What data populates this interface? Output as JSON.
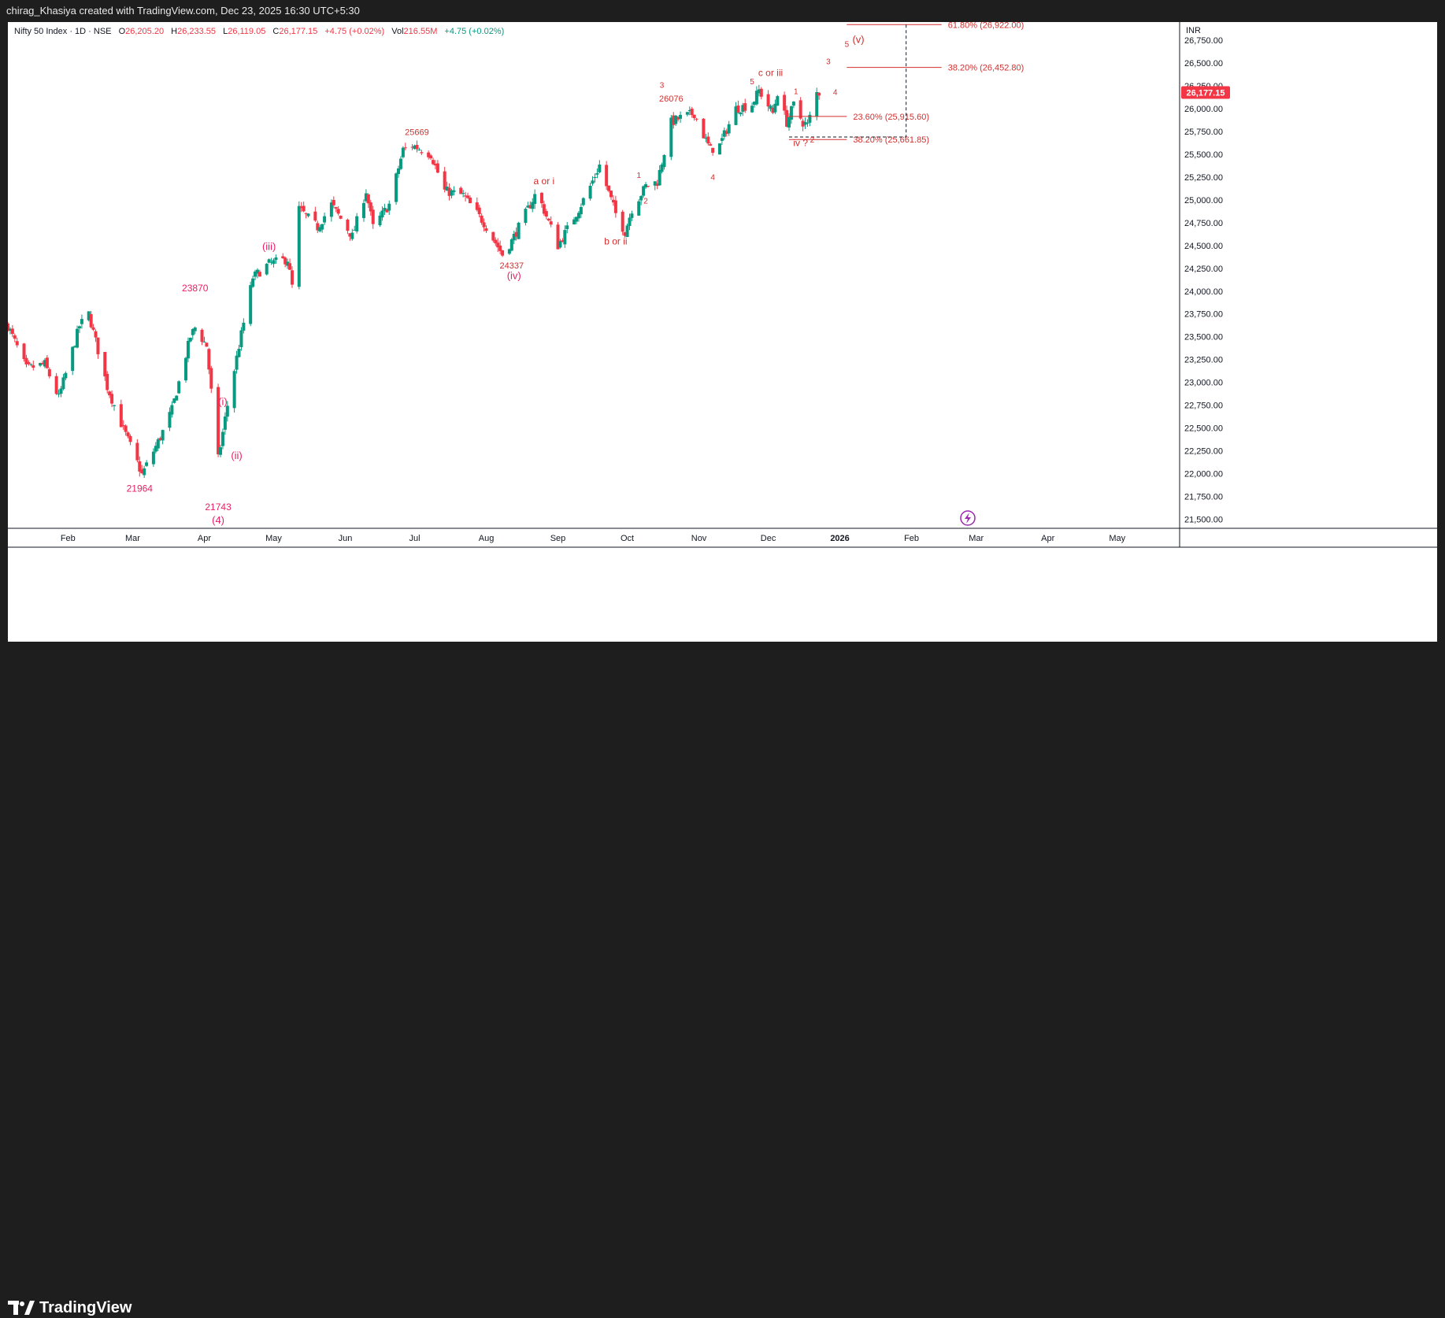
{
  "header": {
    "attribution": "chirag_Khasiya created with TradingView.com, Dec 23, 2025 16:30 UTC+5:30"
  },
  "legend": {
    "symbol": "Nifty 50 Index · 1D · NSE",
    "open_label": "O",
    "open": "26,205.20",
    "high_label": "H",
    "high": "26,233.55",
    "low_label": "L",
    "low": "26,119.05",
    "close_label": "C",
    "close": "26,177.15",
    "change": "+4.75 (+0.02%)",
    "vol_label": "Vol",
    "vol": "216.55M",
    "vol_change": "+4.75 (+0.02%)"
  },
  "branding": {
    "logo_text": "TradingView"
  },
  "colors": {
    "up": "#089981",
    "down": "#f23645",
    "wave_pink": "#e91e63",
    "fib": "#d32f2f",
    "axis_text": "#131722",
    "price_tag_bg": "#f23645"
  },
  "chart_data": {
    "type": "candlestick",
    "currency_label": "INR",
    "last_price_label": "26,177.15",
    "last_price": 26177.15,
    "ylim": [
      21400,
      26950
    ],
    "y_ticks": [
      {
        "v": 26750,
        "l": "26,750.00"
      },
      {
        "v": 26500,
        "l": "26,500.00"
      },
      {
        "v": 26250,
        "l": "26,250.00"
      },
      {
        "v": 26000,
        "l": "26,000.00"
      },
      {
        "v": 25750,
        "l": "25,750.00"
      },
      {
        "v": 25500,
        "l": "25,500.00"
      },
      {
        "v": 25250,
        "l": "25,250.00"
      },
      {
        "v": 25000,
        "l": "25,000.00"
      },
      {
        "v": 24750,
        "l": "24,750.00"
      },
      {
        "v": 24500,
        "l": "24,500.00"
      },
      {
        "v": 24250,
        "l": "24,250.00"
      },
      {
        "v": 24000,
        "l": "24,000.00"
      },
      {
        "v": 23750,
        "l": "23,750.00"
      },
      {
        "v": 23500,
        "l": "23,500.00"
      },
      {
        "v": 23250,
        "l": "23,250.00"
      },
      {
        "v": 23000,
        "l": "23,000.00"
      },
      {
        "v": 22750,
        "l": "22,750.00"
      },
      {
        "v": 22500,
        "l": "22,500.00"
      },
      {
        "v": 22250,
        "l": "22,250.00"
      },
      {
        "v": 22000,
        "l": "22,000.00"
      },
      {
        "v": 21750,
        "l": "21,750.00"
      },
      {
        "v": 21500,
        "l": "21,500.00"
      }
    ],
    "x_ticks": [
      {
        "d": "2025-02-01",
        "l": "Feb",
        "bold": false
      },
      {
        "d": "2025-03-01",
        "l": "Mar",
        "bold": false
      },
      {
        "d": "2025-04-01",
        "l": "Apr",
        "bold": false
      },
      {
        "d": "2025-05-01",
        "l": "May",
        "bold": false
      },
      {
        "d": "2025-06-01",
        "l": "Jun",
        "bold": false
      },
      {
        "d": "2025-07-01",
        "l": "Jul",
        "bold": false
      },
      {
        "d": "2025-08-01",
        "l": "Aug",
        "bold": false
      },
      {
        "d": "2025-09-01",
        "l": "Sep",
        "bold": false
      },
      {
        "d": "2025-10-01",
        "l": "Oct",
        "bold": false
      },
      {
        "d": "2025-11-01",
        "l": "Nov",
        "bold": false
      },
      {
        "d": "2025-12-01",
        "l": "Dec",
        "bold": false
      },
      {
        "d": "2026-01-01",
        "l": "2026",
        "bold": true
      },
      {
        "d": "2026-02-01",
        "l": "Feb",
        "bold": false
      },
      {
        "d": "2026-03-01",
        "l": "Mar",
        "bold": false
      },
      {
        "d": "2026-04-01",
        "l": "Apr",
        "bold": false
      },
      {
        "d": "2026-05-01",
        "l": "May",
        "bold": false
      }
    ],
    "xlim": [
      "2025-01-06",
      "2026-05-28"
    ],
    "anchors": [
      {
        "d": "2025-01-06",
        "c": 23620
      },
      {
        "d": "2025-01-14",
        "c": 23150
      },
      {
        "d": "2025-01-22",
        "c": 23200
      },
      {
        "d": "2025-01-28",
        "c": 22830
      },
      {
        "d": "2025-02-06",
        "c": 23620
      },
      {
        "d": "2025-02-10",
        "c": 23750
      },
      {
        "d": "2025-02-18",
        "c": 22950
      },
      {
        "d": "2025-02-24",
        "c": 22550
      },
      {
        "d": "2025-03-03",
        "c": 22120
      },
      {
        "d": "2025-03-05",
        "c": 21990
      },
      {
        "d": "2025-03-13",
        "c": 22400
      },
      {
        "d": "2025-03-18",
        "c": 22700
      },
      {
        "d": "2025-03-26",
        "c": 23500
      },
      {
        "d": "2025-03-28",
        "c": 23600
      },
      {
        "d": "2025-04-02",
        "c": 23400
      },
      {
        "d": "2025-04-04",
        "c": 22900
      },
      {
        "d": "2025-04-07",
        "c": 22160
      },
      {
        "d": "2025-04-09",
        "c": 22450
      },
      {
        "d": "2025-04-11",
        "c": 22750
      },
      {
        "d": "2025-04-16",
        "c": 23400
      },
      {
        "d": "2025-04-22",
        "c": 24150
      },
      {
        "d": "2025-04-29",
        "c": 24300
      },
      {
        "d": "2025-05-07",
        "c": 24350
      },
      {
        "d": "2025-05-09",
        "c": 24050
      },
      {
        "d": "2025-05-12",
        "c": 24900
      },
      {
        "d": "2025-05-20",
        "c": 24700
      },
      {
        "d": "2025-05-26",
        "c": 24950
      },
      {
        "d": "2025-06-04",
        "c": 24600
      },
      {
        "d": "2025-06-10",
        "c": 25100
      },
      {
        "d": "2025-06-13",
        "c": 24700
      },
      {
        "d": "2025-06-20",
        "c": 24950
      },
      {
        "d": "2025-06-26",
        "c": 25550
      },
      {
        "d": "2025-06-30",
        "c": 25600
      },
      {
        "d": "2025-07-08",
        "c": 25500
      },
      {
        "d": "2025-07-14",
        "c": 25100
      },
      {
        "d": "2025-07-22",
        "c": 25050
      },
      {
        "d": "2025-07-31",
        "c": 24750
      },
      {
        "d": "2025-08-08",
        "c": 24400
      },
      {
        "d": "2025-08-12",
        "c": 24550
      },
      {
        "d": "2025-08-18",
        "c": 24850
      },
      {
        "d": "2025-08-22",
        "c": 25050
      },
      {
        "d": "2025-08-25",
        "c": 24950
      },
      {
        "d": "2025-09-01",
        "c": 24500
      },
      {
        "d": "2025-09-10",
        "c": 24900
      },
      {
        "d": "2025-09-15",
        "c": 25150
      },
      {
        "d": "2025-09-19",
        "c": 25380
      },
      {
        "d": "2025-09-26",
        "c": 24850
      },
      {
        "d": "2025-09-30",
        "c": 24650
      },
      {
        "d": "2025-10-03",
        "c": 24900
      },
      {
        "d": "2025-10-09",
        "c": 25150
      },
      {
        "d": "2025-10-14",
        "c": 25200
      },
      {
        "d": "2025-10-20",
        "c": 25850
      },
      {
        "d": "2025-10-24",
        "c": 25900
      },
      {
        "d": "2025-10-30",
        "c": 25950
      },
      {
        "d": "2025-11-04",
        "c": 25650
      },
      {
        "d": "2025-11-06",
        "c": 25550
      },
      {
        "d": "2025-11-10",
        "c": 25600
      },
      {
        "d": "2025-11-17",
        "c": 26000
      },
      {
        "d": "2025-11-24",
        "c": 26050
      },
      {
        "d": "2025-11-27",
        "c": 26200
      },
      {
        "d": "2025-12-03",
        "c": 25950
      },
      {
        "d": "2025-12-05",
        "c": 26180
      },
      {
        "d": "2025-12-09",
        "c": 25850
      },
      {
        "d": "2025-12-12",
        "c": 26040
      },
      {
        "d": "2025-12-16",
        "c": 25850
      },
      {
        "d": "2025-12-18",
        "c": 25820
      },
      {
        "d": "2025-12-22",
        "c": 26172
      },
      {
        "d": "2025-12-23",
        "c": 26177
      }
    ],
    "wave_labels": [
      {
        "text": "23870",
        "d": "2025-03-28",
        "v": 24000,
        "color": "pink",
        "size": 12
      },
      {
        "text": "21964",
        "d": "2025-03-04",
        "v": 21800,
        "color": "pink",
        "size": 12
      },
      {
        "text": "21743",
        "d": "2025-04-07",
        "v": 21600,
        "color": "pink",
        "size": 12
      },
      {
        "text": "(4)",
        "d": "2025-04-07",
        "v": 21450,
        "color": "pink",
        "size": 13
      },
      {
        "text": "(i)",
        "d": "2025-04-09",
        "v": 22750,
        "color": "pink",
        "size": 13
      },
      {
        "text": "(ii)",
        "d": "2025-04-15",
        "v": 22160,
        "color": "pink",
        "size": 13
      },
      {
        "text": "(iii)",
        "d": "2025-04-29",
        "v": 24450,
        "color": "pink",
        "size": 13
      },
      {
        "text": "25669",
        "d": "2025-07-02",
        "v": 25710,
        "color": "red",
        "size": 11
      },
      {
        "text": "24337",
        "d": "2025-08-12",
        "v": 24250,
        "color": "red",
        "size": 11
      },
      {
        "text": "(iv)",
        "d": "2025-08-13",
        "v": 24130,
        "color": "pink",
        "size": 13
      },
      {
        "text": "a or i",
        "d": "2025-08-26",
        "v": 25170,
        "color": "red",
        "size": 12
      },
      {
        "text": "b or ii",
        "d": "2025-09-26",
        "v": 24510,
        "color": "red",
        "size": 12
      },
      {
        "text": "1",
        "d": "2025-10-06",
        "v": 25240,
        "color": "red",
        "size": 10
      },
      {
        "text": "2",
        "d": "2025-10-09",
        "v": 24960,
        "color": "red",
        "size": 10
      },
      {
        "text": "3",
        "d": "2025-10-16",
        "v": 26230,
        "color": "red",
        "size": 10
      },
      {
        "text": "26076",
        "d": "2025-10-20",
        "v": 26080,
        "color": "red",
        "size": 11
      },
      {
        "text": "4",
        "d": "2025-11-07",
        "v": 25220,
        "color": "red",
        "size": 10
      },
      {
        "text": "5",
        "d": "2025-11-24",
        "v": 26270,
        "color": "red",
        "size": 10
      },
      {
        "text": "c or iii",
        "d": "2025-12-02",
        "v": 26360,
        "color": "red",
        "size": 12
      },
      {
        "text": "1",
        "d": "2025-12-13",
        "v": 26160,
        "color": "red",
        "size": 10
      },
      {
        "text": "iv ?",
        "d": "2025-12-15",
        "v": 25590,
        "color": "red",
        "size": 12
      },
      {
        "text": "2",
        "d": "2025-12-20",
        "v": 25630,
        "color": "red",
        "size": 10
      },
      {
        "text": "3",
        "d": "2025-12-27",
        "v": 26490,
        "color": "red",
        "size": 10
      },
      {
        "text": "4",
        "d": "2025-12-30",
        "v": 26150,
        "color": "red",
        "size": 10
      },
      {
        "text": "5",
        "d": "2026-01-04",
        "v": 26680,
        "color": "red",
        "size": 10
      },
      {
        "text": "(v)",
        "d": "2026-01-09",
        "v": 26720,
        "color": "red",
        "size": 13
      }
    ],
    "fib_levels": [
      {
        "label": "61.80% (26,922.00)",
        "v": 26922,
        "from": "2026-01-04",
        "to": "2026-02-14"
      },
      {
        "label": "38.20% (26,452.80)",
        "v": 26452.8,
        "from": "2026-01-04",
        "to": "2026-02-14"
      },
      {
        "label": "23.60% (25,915.60)",
        "v": 25915.6,
        "from": "2025-12-10",
        "to": "2026-01-04"
      },
      {
        "label": "38.20% (25,661.85)",
        "v": 25661.85,
        "from": "2025-12-10",
        "to": "2026-01-04"
      }
    ]
  }
}
